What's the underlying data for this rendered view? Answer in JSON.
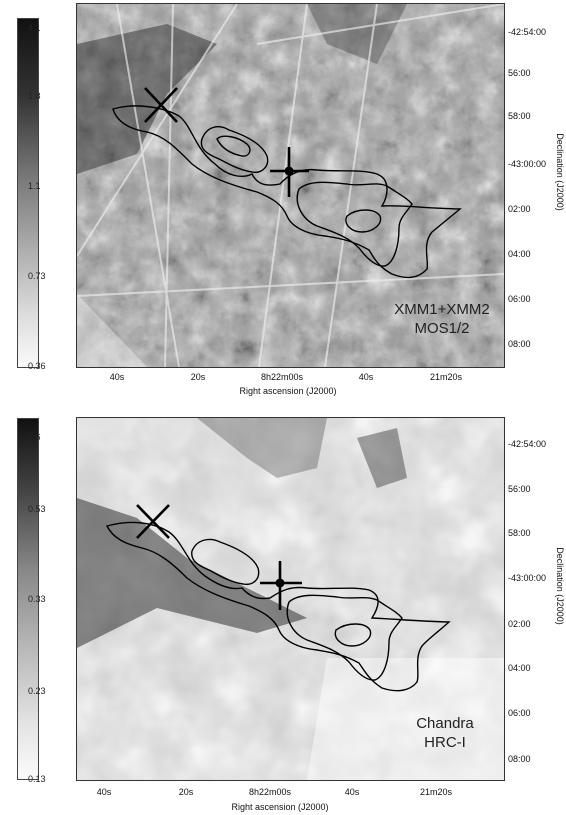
{
  "top_panel": {
    "colorbar_labels": [
      "4.1",
      "1.8",
      "1.1",
      "0.73",
      "0.36"
    ],
    "x_ticks": [
      "40s",
      "20s",
      "8h22m00s",
      "40s",
      "21m20s"
    ],
    "y_ticks": [
      "-42:54:00",
      "56:00",
      "58:00",
      "-43:00:00",
      "02:00",
      "04:00",
      "06:00",
      "08:00"
    ],
    "x_label": "Right ascension (J2000)",
    "y_label": "Declination (J2000)",
    "annotation_line1": "XMM1+XMM2",
    "annotation_line2": "MOS1/2"
  },
  "bottom_panel": {
    "colorbar_labels": [
      "8.6",
      "0.53",
      "0.33",
      "0.23",
      "0.13"
    ],
    "x_ticks": [
      "40s",
      "20s",
      "8h22m00s",
      "40s",
      "21m20s"
    ],
    "y_ticks": [
      "-42:54:00",
      "56:00",
      "58:00",
      "-43:00:00",
      "02:00",
      "04:00",
      "06:00",
      "08:00"
    ],
    "x_label": "Right ascension (J2000)",
    "y_label": "Declination (J2000)",
    "annotation_line1": "Chandra",
    "annotation_line2": "HRC-I"
  }
}
